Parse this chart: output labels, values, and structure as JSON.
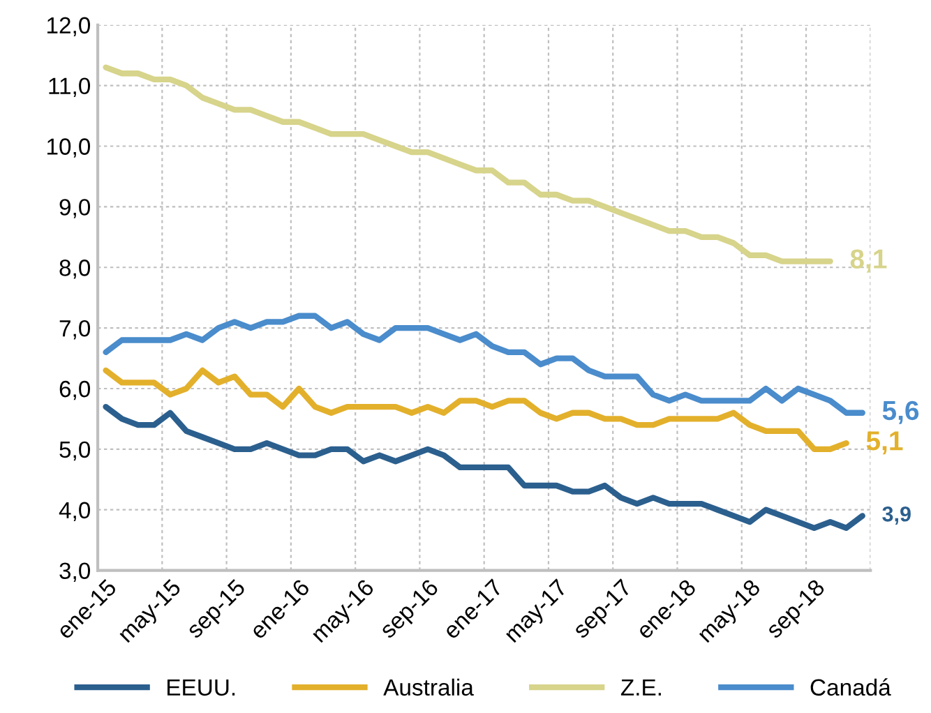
{
  "chart_data": {
    "type": "line",
    "categories": [
      "ene-15",
      null,
      null,
      null,
      "may-15",
      null,
      null,
      null,
      "sep-15",
      null,
      null,
      null,
      "ene-16",
      null,
      null,
      null,
      "may-16",
      null,
      null,
      null,
      "sep-16",
      null,
      null,
      null,
      "ene-17",
      null,
      null,
      null,
      "may-17",
      null,
      null,
      null,
      "sep-17",
      null,
      null,
      null,
      "ene-18",
      null,
      null,
      null,
      "may-18",
      null,
      null,
      null,
      "sep-18",
      null,
      null,
      null
    ],
    "series": [
      {
        "name": "EEUU.",
        "color": "#2b5f8e",
        "values": [
          5.7,
          5.5,
          5.4,
          5.4,
          5.6,
          5.3,
          5.2,
          5.1,
          5.0,
          5.0,
          5.1,
          5.0,
          4.9,
          4.9,
          5.0,
          5.0,
          4.8,
          4.9,
          4.8,
          4.9,
          5.0,
          4.9,
          4.7,
          4.7,
          4.7,
          4.7,
          4.4,
          4.4,
          4.4,
          4.3,
          4.3,
          4.4,
          4.2,
          4.1,
          4.2,
          4.1,
          4.1,
          4.1,
          4.0,
          3.9,
          3.8,
          4.0,
          3.9,
          3.8,
          3.7,
          3.8,
          3.7,
          3.9
        ],
        "value_labels": [
          null,
          null,
          null,
          null,
          null,
          null,
          null,
          null,
          null,
          null,
          null,
          null,
          null,
          null,
          null,
          null,
          null,
          null,
          null,
          null,
          null,
          null,
          null,
          null,
          null,
          null,
          null,
          null,
          null,
          null,
          null,
          null,
          null,
          null,
          null,
          null,
          null,
          null,
          null,
          null,
          null,
          null,
          null,
          null,
          null,
          null,
          null,
          "3,9"
        ]
      },
      {
        "name": "Australia",
        "color": "#e3b02b",
        "values": [
          6.3,
          6.1,
          6.1,
          6.1,
          5.9,
          6.0,
          6.3,
          6.1,
          6.2,
          5.9,
          5.9,
          5.7,
          6.0,
          5.7,
          5.6,
          5.7,
          5.7,
          5.7,
          5.7,
          5.6,
          5.7,
          5.6,
          5.8,
          5.8,
          5.7,
          5.8,
          5.8,
          5.6,
          5.5,
          5.6,
          5.6,
          5.5,
          5.5,
          5.4,
          5.4,
          5.5,
          5.5,
          5.5,
          5.5,
          5.6,
          5.4,
          5.3,
          5.3,
          5.3,
          5.0,
          5.0,
          5.1,
          null
        ],
        "value_labels": [
          null,
          null,
          null,
          null,
          null,
          null,
          null,
          null,
          null,
          null,
          null,
          null,
          null,
          null,
          null,
          null,
          null,
          null,
          null,
          null,
          null,
          null,
          null,
          null,
          null,
          null,
          null,
          null,
          null,
          null,
          null,
          null,
          null,
          null,
          null,
          null,
          null,
          null,
          null,
          null,
          null,
          null,
          null,
          null,
          null,
          null,
          "5,1",
          null
        ]
      },
      {
        "name": "Z.E.",
        "color": "#d7d48b",
        "values": [
          11.3,
          11.2,
          11.2,
          11.1,
          11.1,
          11.0,
          10.8,
          10.7,
          10.6,
          10.6,
          10.5,
          10.4,
          10.4,
          10.3,
          10.2,
          10.2,
          10.2,
          10.1,
          10.0,
          9.9,
          9.9,
          9.8,
          9.7,
          9.6,
          9.6,
          9.4,
          9.4,
          9.2,
          9.2,
          9.1,
          9.1,
          9.0,
          8.9,
          8.8,
          8.7,
          8.6,
          8.6,
          8.5,
          8.5,
          8.4,
          8.2,
          8.2,
          8.1,
          8.1,
          8.1,
          8.1,
          null,
          null
        ],
        "value_labels": [
          null,
          null,
          null,
          null,
          null,
          null,
          null,
          null,
          null,
          null,
          null,
          null,
          null,
          null,
          null,
          null,
          null,
          null,
          null,
          null,
          null,
          null,
          null,
          null,
          null,
          null,
          null,
          null,
          null,
          null,
          null,
          null,
          null,
          null,
          null,
          null,
          null,
          null,
          null,
          null,
          null,
          null,
          null,
          null,
          null,
          "8,1",
          null,
          null
        ]
      },
      {
        "name": "Canadá",
        "color": "#4a8ccc",
        "values": [
          6.6,
          6.8,
          6.8,
          6.8,
          6.8,
          6.9,
          6.8,
          7.0,
          7.1,
          7.0,
          7.1,
          7.1,
          7.2,
          7.2,
          7.0,
          7.1,
          6.9,
          6.8,
          7.0,
          7.0,
          7.0,
          6.9,
          6.8,
          6.9,
          6.7,
          6.6,
          6.6,
          6.4,
          6.5,
          6.5,
          6.3,
          6.2,
          6.2,
          6.2,
          5.9,
          5.8,
          5.9,
          5.8,
          5.8,
          5.8,
          5.8,
          6.0,
          5.8,
          6.0,
          5.9,
          5.8,
          5.6,
          5.6
        ],
        "value_labels": [
          null,
          null,
          null,
          null,
          null,
          null,
          null,
          null,
          null,
          null,
          null,
          null,
          null,
          null,
          null,
          null,
          null,
          null,
          null,
          null,
          null,
          null,
          null,
          null,
          null,
          null,
          null,
          null,
          null,
          null,
          null,
          null,
          null,
          null,
          null,
          null,
          null,
          null,
          null,
          null,
          null,
          null,
          null,
          null,
          null,
          null,
          null,
          "5,6"
        ]
      }
    ],
    "ylim": [
      3,
      12
    ],
    "yticks": [
      {
        "value": 3,
        "label": "3,0"
      },
      {
        "value": 4,
        "label": "4,0"
      },
      {
        "value": 5,
        "label": "5,0"
      },
      {
        "value": 6,
        "label": "6,0"
      },
      {
        "value": 7,
        "label": "7,0"
      },
      {
        "value": 8,
        "label": "8,0"
      },
      {
        "value": 9,
        "label": "9,0"
      },
      {
        "value": 10,
        "label": "10,0"
      },
      {
        "value": 11,
        "label": "11,0"
      },
      {
        "value": 12,
        "label": "12,0"
      }
    ],
    "grid": true,
    "legend": "bottom",
    "marker": "none",
    "line_style": "solid"
  }
}
